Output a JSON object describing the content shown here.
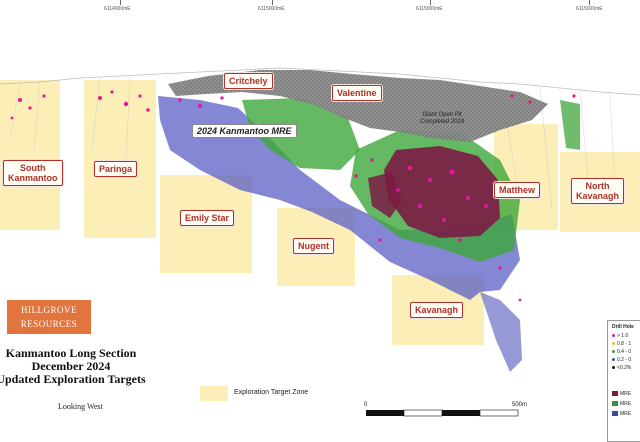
{
  "eastings": [
    "6114000mE",
    "6115000mE",
    "6115000mE",
    "6115000mE"
  ],
  "targets": {
    "south_kanmantoo": "South\nKanmantoo",
    "paringa": "Paringa",
    "emily_star": "Emily Star",
    "nugent": "Nugent",
    "kavanagh": "Kavanagh",
    "matthew": "Matthew",
    "north_kavanagh": "North\nKavanagh",
    "critchely": "Critchely",
    "valentine": "Valentine"
  },
  "mre_label": "2024 Kanmantoo MRE",
  "pit_label": "Giant Open Pit\nCompleted 2019",
  "logo": {
    "line1": "HILLGROVE",
    "line2": "RESOURCES"
  },
  "title": {
    "line1": "Kanmantoo Long Section",
    "line2": "December 2024",
    "line3": "Updated Exploration Targets",
    "line4": "Looking West"
  },
  "legend": {
    "target_zone": "Exploration Target Zone"
  },
  "scale": {
    "start": "0",
    "end": "500m"
  },
  "drill_legend": {
    "title": "Drill Hole",
    "items": [
      {
        "label": "> 1.0",
        "color": "#e0199a"
      },
      {
        "label": "0.8 - 1",
        "color": "#f2c21f"
      },
      {
        "label": "0.4 - 0",
        "color": "#3fa73b"
      },
      {
        "label": "0.2 - 0",
        "color": "#2c56c8"
      },
      {
        "label": "<0.2%",
        "color": "#1b1b2f"
      }
    ],
    "mre": [
      {
        "label": "MRE",
        "color": "#7a1b45"
      },
      {
        "label": "MRE",
        "color": "#3d8e3a"
      },
      {
        "label": "MRE",
        "color": "#4345a3"
      }
    ]
  },
  "colors": {
    "target_fill": "#fbeeb6",
    "label_border": "#b0302a",
    "grade_high": "#e0199a",
    "grade_med": "#3fa73b",
    "grade_low": "#5b5fc4",
    "pit": "#6a6a6a",
    "logo": "#e2743e"
  }
}
